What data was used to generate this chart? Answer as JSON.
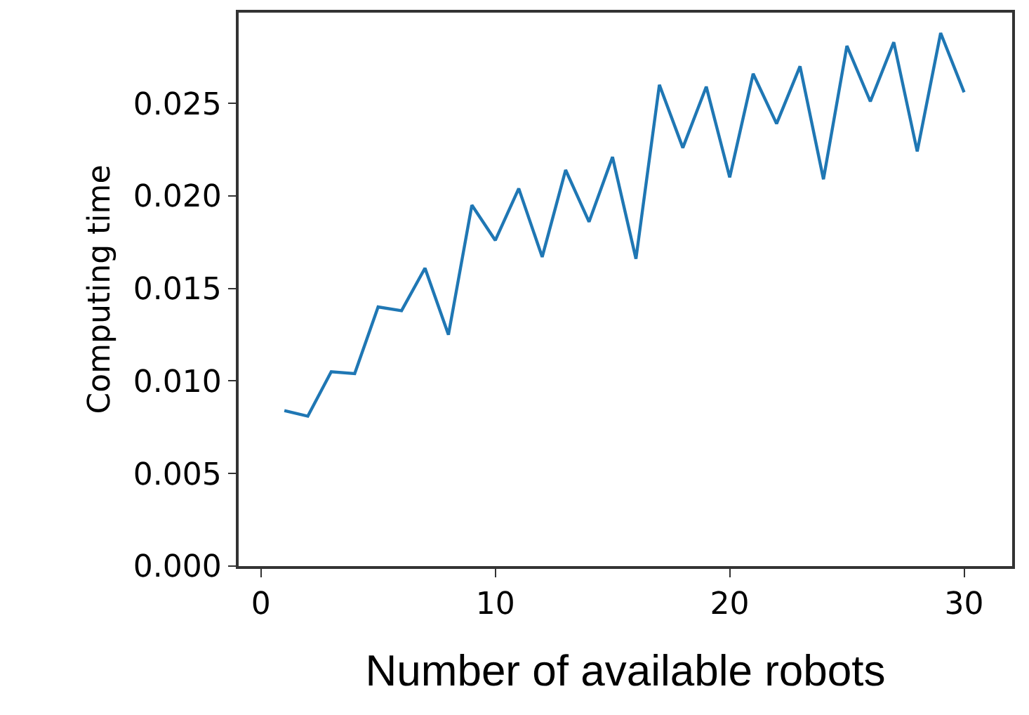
{
  "chart_data": {
    "type": "line",
    "xlabel": "Number of available robots",
    "ylabel": "Computing time",
    "x": [
      1,
      2,
      3,
      4,
      5,
      6,
      7,
      8,
      9,
      10,
      11,
      12,
      13,
      14,
      15,
      16,
      17,
      18,
      19,
      20,
      21,
      22,
      23,
      24,
      25,
      26,
      27,
      28,
      29,
      30
    ],
    "series": [
      {
        "color": "#1f77b4",
        "values": [
          0.0084,
          0.0081,
          0.0105,
          0.0104,
          0.014,
          0.0138,
          0.0161,
          0.0125,
          0.0195,
          0.0176,
          0.0204,
          0.0167,
          0.0214,
          0.0186,
          0.0221,
          0.0166,
          0.026,
          0.0226,
          0.0259,
          0.021,
          0.0266,
          0.0239,
          0.027,
          0.0209,
          0.0281,
          0.0251,
          0.0283,
          0.0224,
          0.0288,
          0.0256
        ]
      }
    ],
    "xlim": [
      -0.95,
      32.05
    ],
    "ylim": [
      0,
      0.0299
    ],
    "xticks": [
      0,
      10,
      20,
      30
    ],
    "yticks": [
      {
        "value": 0,
        "label": "0.000"
      },
      {
        "value": 0.005,
        "label": "0.005"
      },
      {
        "value": 0.01,
        "label": "0.010"
      },
      {
        "value": 0.015,
        "label": "0.015"
      },
      {
        "value": 0.02,
        "label": "0.020"
      },
      {
        "value": 0.025,
        "label": "0.025"
      }
    ],
    "grid": false,
    "marker": "none",
    "line_style": "solid"
  }
}
